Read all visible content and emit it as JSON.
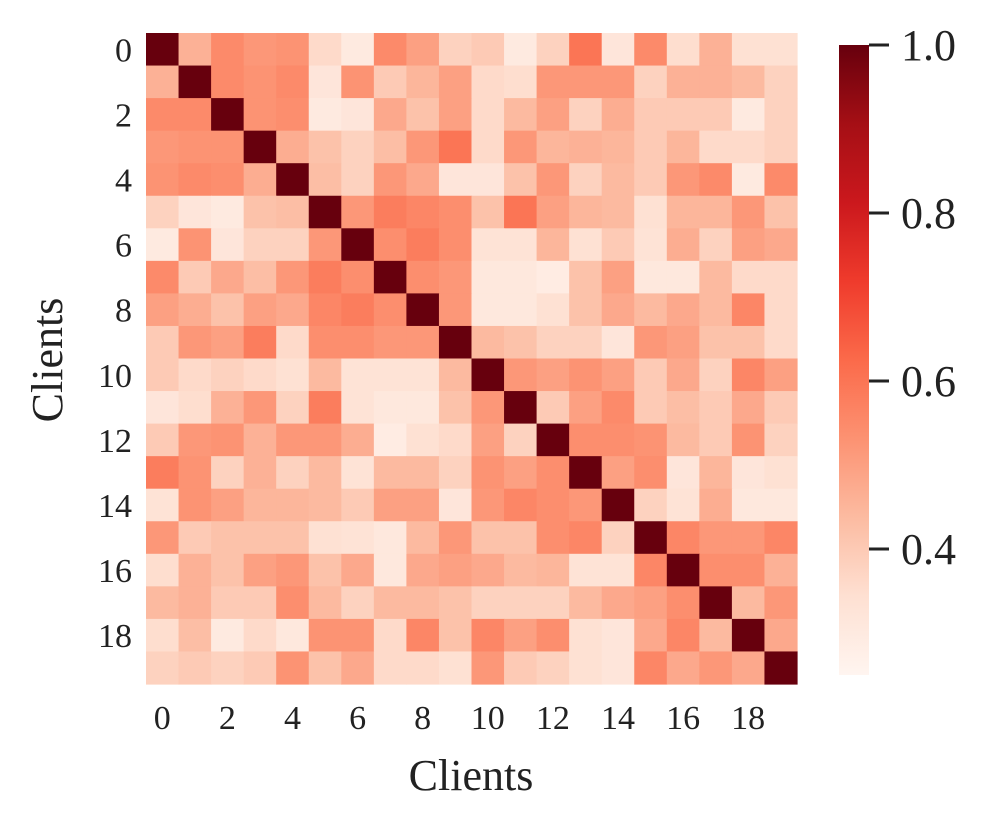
{
  "chart_data": {
    "type": "heatmap",
    "xlabel": "Clients",
    "ylabel": "Clients",
    "x_tick_labels": [
      "0",
      "2",
      "4",
      "6",
      "8",
      "10",
      "12",
      "14",
      "16",
      "18"
    ],
    "y_tick_labels": [
      "0",
      "2",
      "4",
      "6",
      "8",
      "10",
      "12",
      "14",
      "16",
      "18"
    ],
    "colorbar": {
      "colormap": "Reds",
      "vmin": 0.25,
      "vmax": 1.0,
      "ticks": [
        "0.4",
        "0.6",
        "0.8",
        "1.0"
      ]
    },
    "size": 20,
    "rows": [
      "0",
      "1",
      "2",
      "3",
      "4",
      "5",
      "6",
      "7",
      "8",
      "9",
      "10",
      "11",
      "12",
      "13",
      "14",
      "15",
      "16",
      "17",
      "18",
      "19"
    ],
    "columns": [
      "0",
      "1",
      "2",
      "3",
      "4",
      "5",
      "6",
      "7",
      "8",
      "9",
      "10",
      "11",
      "12",
      "13",
      "14",
      "15",
      "16",
      "17",
      "18",
      "19"
    ],
    "values": [
      [
        1.0,
        0.46,
        0.55,
        0.52,
        0.53,
        0.36,
        0.3,
        0.55,
        0.5,
        0.38,
        0.4,
        0.3,
        0.38,
        0.6,
        0.32,
        0.55,
        0.35,
        0.46,
        0.34,
        0.34
      ],
      [
        0.46,
        1.0,
        0.55,
        0.53,
        0.55,
        0.32,
        0.53,
        0.4,
        0.45,
        0.5,
        0.36,
        0.35,
        0.52,
        0.52,
        0.52,
        0.38,
        0.46,
        0.46,
        0.44,
        0.38
      ],
      [
        0.55,
        0.55,
        1.0,
        0.53,
        0.54,
        0.3,
        0.32,
        0.48,
        0.42,
        0.5,
        0.36,
        0.44,
        0.5,
        0.38,
        0.47,
        0.4,
        0.4,
        0.4,
        0.3,
        0.38
      ],
      [
        0.52,
        0.53,
        0.53,
        1.0,
        0.47,
        0.42,
        0.38,
        0.43,
        0.52,
        0.6,
        0.36,
        0.52,
        0.45,
        0.46,
        0.45,
        0.4,
        0.45,
        0.36,
        0.36,
        0.38
      ],
      [
        0.53,
        0.55,
        0.54,
        0.47,
        1.0,
        0.43,
        0.38,
        0.52,
        0.48,
        0.32,
        0.32,
        0.42,
        0.52,
        0.38,
        0.44,
        0.4,
        0.52,
        0.55,
        0.3,
        0.55
      ],
      [
        0.38,
        0.32,
        0.3,
        0.42,
        0.43,
        1.0,
        0.52,
        0.58,
        0.56,
        0.54,
        0.42,
        0.6,
        0.5,
        0.45,
        0.44,
        0.34,
        0.45,
        0.45,
        0.52,
        0.42
      ],
      [
        0.3,
        0.53,
        0.32,
        0.38,
        0.38,
        0.52,
        1.0,
        0.54,
        0.58,
        0.54,
        0.33,
        0.33,
        0.45,
        0.34,
        0.4,
        0.33,
        0.47,
        0.38,
        0.5,
        0.48
      ],
      [
        0.55,
        0.4,
        0.48,
        0.43,
        0.52,
        0.58,
        0.54,
        1.0,
        0.54,
        0.52,
        0.31,
        0.31,
        0.29,
        0.42,
        0.5,
        0.31,
        0.31,
        0.44,
        0.36,
        0.36
      ],
      [
        0.5,
        0.47,
        0.42,
        0.5,
        0.48,
        0.56,
        0.58,
        0.54,
        1.0,
        0.52,
        0.31,
        0.31,
        0.34,
        0.42,
        0.48,
        0.44,
        0.48,
        0.44,
        0.56,
        0.36
      ],
      [
        0.4,
        0.52,
        0.5,
        0.58,
        0.36,
        0.54,
        0.54,
        0.52,
        0.52,
        1.0,
        0.44,
        0.42,
        0.38,
        0.38,
        0.32,
        0.52,
        0.5,
        0.42,
        0.42,
        0.36
      ],
      [
        0.4,
        0.36,
        0.38,
        0.36,
        0.34,
        0.44,
        0.33,
        0.33,
        0.33,
        0.44,
        1.0,
        0.52,
        0.5,
        0.53,
        0.5,
        0.4,
        0.48,
        0.38,
        0.56,
        0.5
      ],
      [
        0.32,
        0.35,
        0.46,
        0.52,
        0.38,
        0.58,
        0.33,
        0.31,
        0.31,
        0.42,
        0.52,
        1.0,
        0.4,
        0.5,
        0.55,
        0.4,
        0.43,
        0.4,
        0.48,
        0.4
      ],
      [
        0.4,
        0.52,
        0.53,
        0.46,
        0.52,
        0.52,
        0.47,
        0.29,
        0.34,
        0.36,
        0.5,
        0.38,
        1.0,
        0.54,
        0.54,
        0.53,
        0.44,
        0.4,
        0.53,
        0.38
      ],
      [
        0.58,
        0.53,
        0.38,
        0.46,
        0.38,
        0.44,
        0.33,
        0.44,
        0.44,
        0.38,
        0.53,
        0.5,
        0.54,
        1.0,
        0.5,
        0.54,
        0.32,
        0.45,
        0.32,
        0.34
      ],
      [
        0.33,
        0.53,
        0.5,
        0.45,
        0.45,
        0.44,
        0.4,
        0.5,
        0.5,
        0.32,
        0.52,
        0.56,
        0.54,
        0.52,
        1.0,
        0.38,
        0.33,
        0.47,
        0.31,
        0.31
      ],
      [
        0.52,
        0.4,
        0.42,
        0.42,
        0.42,
        0.34,
        0.33,
        0.31,
        0.44,
        0.52,
        0.42,
        0.42,
        0.54,
        0.56,
        0.38,
        1.0,
        0.56,
        0.52,
        0.52,
        0.56
      ],
      [
        0.35,
        0.46,
        0.42,
        0.5,
        0.52,
        0.42,
        0.48,
        0.31,
        0.48,
        0.5,
        0.48,
        0.44,
        0.45,
        0.33,
        0.33,
        0.56,
        1.0,
        0.54,
        0.54,
        0.46
      ],
      [
        0.44,
        0.46,
        0.4,
        0.4,
        0.54,
        0.44,
        0.38,
        0.44,
        0.44,
        0.42,
        0.38,
        0.38,
        0.38,
        0.44,
        0.48,
        0.5,
        0.54,
        1.0,
        0.44,
        0.52
      ],
      [
        0.35,
        0.43,
        0.3,
        0.36,
        0.31,
        0.53,
        0.53,
        0.36,
        0.56,
        0.42,
        0.56,
        0.5,
        0.54,
        0.34,
        0.32,
        0.48,
        0.56,
        0.44,
        1.0,
        0.48
      ],
      [
        0.38,
        0.4,
        0.38,
        0.4,
        0.53,
        0.42,
        0.48,
        0.36,
        0.36,
        0.34,
        0.52,
        0.4,
        0.38,
        0.34,
        0.32,
        0.56,
        0.48,
        0.52,
        0.48,
        1.0
      ]
    ]
  }
}
